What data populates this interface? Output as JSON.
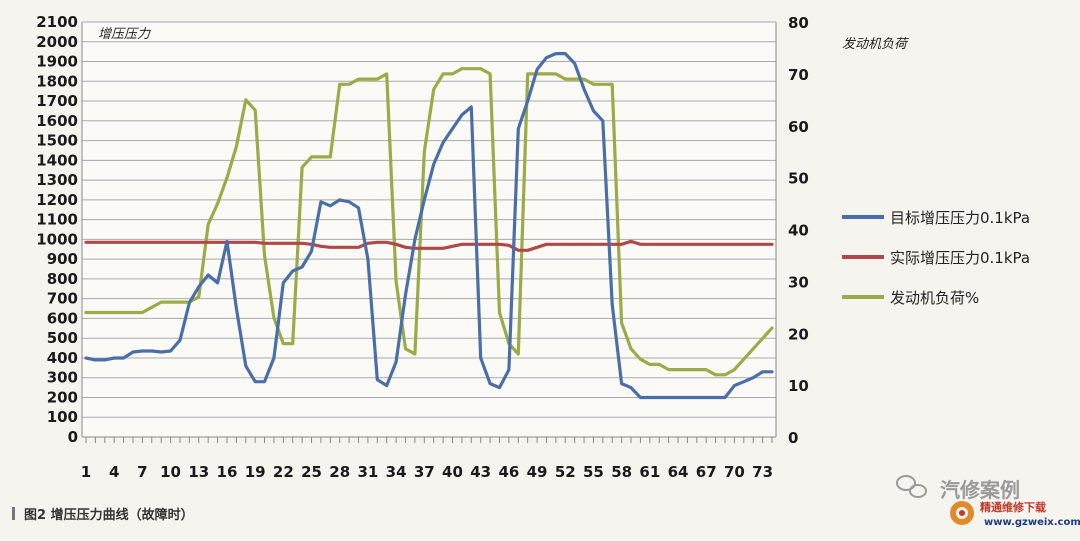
{
  "chart_data": {
    "type": "line",
    "y_left_label": "增压压力",
    "y_right_label": "发动机负荷",
    "ylim_left": [
      0,
      2100
    ],
    "ylim_right": [
      0,
      80
    ],
    "y_left_ticks": [
      0,
      100,
      200,
      300,
      400,
      500,
      600,
      700,
      800,
      900,
      1000,
      1100,
      1200,
      1300,
      1400,
      1500,
      1600,
      1700,
      1800,
      1900,
      2000,
      2100
    ],
    "y_right_ticks": [
      0,
      10,
      20,
      30,
      40,
      50,
      60,
      70,
      80
    ],
    "x_tick_labels": [
      "1",
      "4",
      "7",
      "10",
      "13",
      "16",
      "19",
      "22",
      "25",
      "28",
      "31",
      "34",
      "37",
      "40",
      "43",
      "46",
      "49",
      "52",
      "55",
      "58",
      "61",
      "64",
      "67",
      "70",
      "73"
    ],
    "x_count": 74,
    "series": [
      {
        "name": "目标增压压力0.1kPa",
        "axis": "left",
        "color": "#4a6fa8",
        "values": [
          400,
          390,
          390,
          400,
          400,
          430,
          435,
          435,
          430,
          435,
          490,
          680,
          760,
          820,
          780,
          990,
          650,
          360,
          280,
          280,
          400,
          780,
          840,
          860,
          940,
          1190,
          1170,
          1200,
          1190,
          1160,
          900,
          290,
          260,
          380,
          720,
          1000,
          1200,
          1380,
          1490,
          1560,
          1630,
          1670,
          400,
          270,
          250,
          340,
          1560,
          1700,
          1860,
          1920,
          1940,
          1940,
          1890,
          1760,
          1650,
          1600,
          670,
          270,
          250,
          200,
          200,
          200,
          200,
          200,
          200,
          200,
          200,
          200,
          200,
          260,
          280,
          300,
          330,
          330
        ]
      },
      {
        "name": "实际增压压力0.1kPa",
        "axis": "left",
        "color": "#b04848",
        "values": [
          985,
          985,
          985,
          985,
          985,
          985,
          985,
          985,
          985,
          985,
          985,
          985,
          985,
          985,
          985,
          985,
          985,
          985,
          985,
          980,
          980,
          980,
          980,
          980,
          975,
          965,
          960,
          960,
          960,
          960,
          980,
          985,
          985,
          975,
          960,
          955,
          955,
          955,
          955,
          965,
          975,
          975,
          975,
          975,
          975,
          970,
          945,
          945,
          960,
          975,
          975,
          975,
          975,
          975,
          975,
          975,
          975,
          975,
          990,
          975,
          975,
          975,
          975,
          975,
          975,
          975,
          975,
          975,
          975,
          975,
          975,
          975,
          975,
          975
        ]
      },
      {
        "name": "发动机负荷%",
        "axis": "right",
        "color": "#9aab48",
        "values": [
          24,
          24,
          24,
          24,
          24,
          24,
          24,
          25,
          26,
          26,
          26,
          26,
          27,
          41,
          45,
          50,
          56,
          65,
          63,
          35,
          23,
          18,
          18,
          52,
          54,
          54,
          54,
          68,
          68,
          69,
          69,
          69,
          70,
          30,
          17,
          16,
          55,
          67,
          70,
          70,
          71,
          71,
          71,
          70,
          24,
          18,
          16,
          70,
          70,
          70,
          70,
          69,
          69,
          69,
          68,
          68,
          68,
          22,
          17,
          15,
          14,
          14,
          13,
          13,
          13,
          13,
          13,
          12,
          12,
          13,
          15,
          17,
          19,
          21
        ]
      }
    ],
    "legend_position": "right",
    "grid": true
  },
  "caption": "图2  增压压力曲线（故障时）",
  "watermark": {
    "text": "汽修案例",
    "brand": "精通维修下载",
    "url": "www.gzweix.com"
  }
}
